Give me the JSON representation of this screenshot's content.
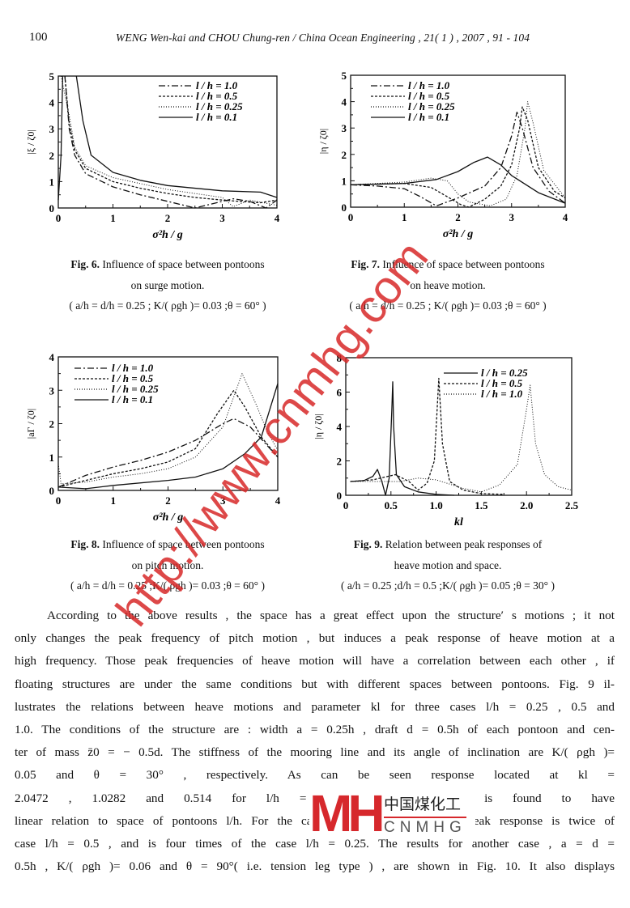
{
  "header": {
    "page_number": "100",
    "running_head": "WENG Wen-kai and CHOU Chung-ren / China Ocean Engineering , 21( 1 ) , 2007 , 91 - 104"
  },
  "captions": [
    {
      "label": "Fig. 6.",
      "lines": [
        "Influence of space between pontoons",
        "on surge motion.",
        "( a/h = d/h = 0.25 ; K/( ρgh )= 0.03 ;θ = 60° )"
      ]
    },
    {
      "label": "Fig. 7.",
      "lines": [
        "Influence of space between pontoons",
        "on heave motion.",
        "( a/h = d/h = 0.25 ; K/( ρgh )= 0.03 ;θ = 60° )"
      ]
    },
    {
      "label": "Fig. 8.",
      "lines": [
        "Influence of space between pontoons",
        "on pitch motion.",
        "( a/h = d/h = 0.25 ;K/( ρgh )= 0.03 ;θ = 60° )"
      ]
    },
    {
      "label": "Fig. 9.",
      "lines": [
        "Relation between peak responses of",
        "heave motion and space.",
        "( a/h = 0.25 ;d/h = 0.5 ;K/( ρgh )= 0.05 ;θ = 30° )"
      ]
    }
  ],
  "chart_data": [
    {
      "type": "line",
      "xlabel": "σ²h / g",
      "ylabel": "|ξ / ζ0|",
      "xlim": [
        0,
        4
      ],
      "ylim": [
        0,
        5
      ],
      "xticks": [
        "0",
        "1",
        "2",
        "3",
        "4"
      ],
      "yticks": [
        "0",
        "1",
        "2",
        "3",
        "4",
        "5"
      ],
      "legend": "top-right",
      "series": [
        {
          "name": "l / h = 1.0",
          "style": "dash-dot",
          "points": [
            [
              0.12,
              5
            ],
            [
              0.2,
              3
            ],
            [
              0.3,
              2
            ],
            [
              0.5,
              1.3
            ],
            [
              1,
              0.8
            ],
            [
              1.5,
              0.5
            ],
            [
              2,
              0.25
            ],
            [
              2.5,
              0
            ],
            [
              2.8,
              0.15
            ],
            [
              3.2,
              0.35
            ],
            [
              3.5,
              0.25
            ],
            [
              3.8,
              0
            ],
            [
              4,
              0.3
            ]
          ]
        },
        {
          "name": "l / h = 0.5",
          "style": "dashed",
          "points": [
            [
              0.12,
              5
            ],
            [
              0.2,
              3.2
            ],
            [
              0.3,
              2.2
            ],
            [
              0.5,
              1.5
            ],
            [
              1,
              1.0
            ],
            [
              1.5,
              0.75
            ],
            [
              2,
              0.55
            ],
            [
              2.5,
              0.4
            ],
            [
              3,
              0.3
            ],
            [
              3.3,
              0.25
            ],
            [
              3.7,
              0.2
            ],
            [
              4,
              0.3
            ]
          ]
        },
        {
          "name": "l / h = 0.25",
          "style": "dotted",
          "points": [
            [
              0.05,
              5
            ],
            [
              0.2,
              3.5
            ],
            [
              0.3,
              2.3
            ],
            [
              0.5,
              1.6
            ],
            [
              1,
              1.15
            ],
            [
              2,
              0.7
            ],
            [
              3,
              0.4
            ],
            [
              3.2,
              0.05
            ],
            [
              3.5,
              0.3
            ],
            [
              4,
              0.1
            ]
          ]
        },
        {
          "name": "l / h = 0.1",
          "style": "solid",
          "points": [
            [
              0,
              0.3
            ],
            [
              0.05,
              2
            ],
            [
              0.08,
              5
            ],
            null,
            [
              0.33,
              5
            ],
            [
              0.45,
              3.3
            ],
            [
              0.6,
              2
            ],
            [
              1,
              1.35
            ],
            [
              1.5,
              1.05
            ],
            [
              2,
              0.85
            ],
            [
              3,
              0.65
            ],
            [
              3.7,
              0.6
            ],
            [
              4,
              0.4
            ]
          ]
        }
      ]
    },
    {
      "type": "line",
      "xlabel": "σ²h / g",
      "ylabel": "|η / ζ0|",
      "xlim": [
        0,
        4
      ],
      "ylim": [
        0,
        5
      ],
      "xticks": [
        "0",
        "1",
        "2",
        "3",
        "4"
      ],
      "yticks": [
        "0",
        "1",
        "2",
        "3",
        "4",
        "5"
      ],
      "legend": "top-left",
      "series": [
        {
          "name": "l / h = 1.0",
          "style": "dash-dot",
          "points": [
            [
              0,
              0.85
            ],
            [
              0.5,
              0.8
            ],
            [
              1,
              0.7
            ],
            [
              1.3,
              0.4
            ],
            [
              1.6,
              0.05
            ],
            [
              2,
              0.35
            ],
            [
              2.5,
              0.8
            ],
            [
              2.8,
              1.5
            ],
            [
              3,
              2.7
            ],
            [
              3.1,
              3.6
            ],
            [
              3.2,
              3.0
            ],
            [
              3.4,
              1.5
            ],
            [
              3.7,
              0.6
            ],
            [
              4,
              0.15
            ]
          ]
        },
        {
          "name": "l / h = 0.5",
          "style": "dashed",
          "points": [
            [
              0,
              0.85
            ],
            [
              1,
              0.9
            ],
            [
              1.5,
              0.75
            ],
            [
              1.8,
              0.4
            ],
            [
              2.05,
              0.1
            ],
            [
              2.2,
              0
            ],
            [
              2.5,
              0.3
            ],
            [
              2.8,
              0.8
            ],
            [
              3,
              1.6
            ],
            [
              3.15,
              3.0
            ],
            [
              3.2,
              3.8
            ],
            [
              3.3,
              3.3
            ],
            [
              3.5,
              1.5
            ],
            [
              3.8,
              0.6
            ],
            [
              4,
              0.35
            ]
          ]
        },
        {
          "name": "l / h = 0.25",
          "style": "dotted",
          "points": [
            [
              0,
              0.85
            ],
            [
              1,
              0.95
            ],
            [
              1.5,
              1.1
            ],
            [
              1.8,
              1.0
            ],
            [
              2.0,
              0.5
            ],
            [
              2.2,
              0.2
            ],
            [
              2.6,
              0.05
            ],
            [
              2.9,
              0.3
            ],
            [
              3.1,
              1.2
            ],
            [
              3.25,
              3.0
            ],
            [
              3.3,
              4.0
            ],
            [
              3.4,
              3.2
            ],
            [
              3.6,
              1.4
            ],
            [
              4,
              0.35
            ]
          ]
        },
        {
          "name": "l / h = 0.1",
          "style": "solid",
          "points": [
            [
              0,
              0.85
            ],
            [
              1,
              0.9
            ],
            [
              1.6,
              1.05
            ],
            [
              2,
              1.35
            ],
            [
              2.3,
              1.7
            ],
            [
              2.55,
              1.9
            ],
            [
              2.8,
              1.6
            ],
            [
              3,
              1.2
            ],
            [
              3.5,
              0.55
            ],
            [
              4,
              0.15
            ]
          ]
        }
      ]
    },
    {
      "type": "line",
      "xlabel": "σ²h / g",
      "ylabel": "|aΓ / ζ0|",
      "xlim": [
        0,
        4
      ],
      "ylim": [
        0,
        4
      ],
      "xticks": [
        "0",
        "1",
        "2",
        "3",
        "4"
      ],
      "yticks": [
        "0",
        "1",
        "2",
        "3",
        "4"
      ],
      "legend": "top-left",
      "series": [
        {
          "name": "l / h = 1.0",
          "style": "dash-dot",
          "points": [
            [
              0,
              0.1
            ],
            [
              0.5,
              0.45
            ],
            [
              1,
              0.7
            ],
            [
              1.5,
              0.9
            ],
            [
              2,
              1.15
            ],
            [
              2.5,
              1.5
            ],
            [
              3,
              2.0
            ],
            [
              3.2,
              2.15
            ],
            [
              3.5,
              1.9
            ],
            [
              4,
              1.0
            ]
          ]
        },
        {
          "name": "l / h = 0.5",
          "style": "dashed",
          "points": [
            [
              0,
              0.1
            ],
            [
              0.5,
              0.3
            ],
            [
              1,
              0.5
            ],
            [
              1.5,
              0.65
            ],
            [
              2,
              0.85
            ],
            [
              2.5,
              1.25
            ],
            [
              2.9,
              2.3
            ],
            [
              3.2,
              3.0
            ],
            [
              3.4,
              2.5
            ],
            [
              3.7,
              1.6
            ],
            [
              4,
              1.0
            ]
          ]
        },
        {
          "name": "l / h = 0.25",
          "style": "dotted",
          "points": [
            [
              0,
              0.8
            ],
            [
              0.05,
              0.2
            ],
            [
              0.5,
              0.25
            ],
            [
              1,
              0.4
            ],
            [
              1.5,
              0.5
            ],
            [
              2,
              0.65
            ],
            [
              2.5,
              1.0
            ],
            [
              3,
              1.9
            ],
            [
              3.35,
              3.5
            ],
            [
              3.6,
              2.6
            ],
            [
              3.8,
              1.8
            ],
            [
              4,
              1.2
            ]
          ]
        },
        {
          "name": "l / h = 0.1",
          "style": "solid",
          "points": [
            [
              0,
              0.1
            ],
            [
              0.5,
              0.05
            ],
            [
              1,
              0.15
            ],
            [
              2,
              0.3
            ],
            [
              2.5,
              0.4
            ],
            [
              3,
              0.65
            ],
            [
              3.4,
              1.1
            ],
            [
              3.7,
              1.6
            ],
            [
              4,
              3.2
            ]
          ]
        }
      ]
    },
    {
      "type": "line",
      "xlabel": "kl",
      "ylabel": "|η / ζ0|",
      "xlim": [
        0,
        2.5
      ],
      "ylim": [
        0,
        8
      ],
      "xticks": [
        "0",
        "0.5",
        "1.0",
        "1.5",
        "2.0",
        "2.5"
      ],
      "yticks": [
        "0",
        "2",
        "4",
        "6",
        "8"
      ],
      "legend": "top-right",
      "series": [
        {
          "name": "l / h = 0.25",
          "style": "solid",
          "points": [
            [
              0.05,
              0.8
            ],
            [
              0.2,
              0.85
            ],
            [
              0.3,
              1.1
            ],
            [
              0.35,
              1.5
            ],
            [
              0.4,
              0.8
            ],
            [
              0.44,
              0
            ],
            [
              0.48,
              1
            ],
            [
              0.51,
              5
            ],
            [
              0.52,
              6.6
            ],
            [
              0.53,
              4
            ],
            [
              0.56,
              1.2
            ],
            [
              0.65,
              0.5
            ],
            [
              0.8,
              0.2
            ],
            [
              1.0,
              0.05
            ],
            [
              1.2,
              0
            ]
          ]
        },
        {
          "name": "l / h = 0.5",
          "style": "dashed",
          "points": [
            [
              0.05,
              0.8
            ],
            [
              0.3,
              0.9
            ],
            [
              0.55,
              1.2
            ],
            [
              0.7,
              0.8
            ],
            [
              0.8,
              0.3
            ],
            [
              0.9,
              0.7
            ],
            [
              0.98,
              2
            ],
            [
              1.03,
              6.8
            ],
            [
              1.07,
              3
            ],
            [
              1.15,
              0.8
            ],
            [
              1.3,
              0.3
            ],
            [
              1.5,
              0.1
            ],
            [
              1.75,
              0.05
            ]
          ]
        },
        {
          "name": "l / h = 1.0",
          "style": "dotted",
          "points": [
            [
              0.05,
              0.8
            ],
            [
              0.6,
              0.8
            ],
            [
              0.8,
              1.0
            ],
            [
              1.0,
              0.9
            ],
            [
              1.3,
              0.4
            ],
            [
              1.5,
              0.2
            ],
            [
              1.7,
              0.6
            ],
            [
              1.9,
              1.8
            ],
            [
              2.0,
              5
            ],
            [
              2.04,
              6.4
            ],
            [
              2.1,
              3
            ],
            [
              2.2,
              1.2
            ],
            [
              2.35,
              0.5
            ],
            [
              2.5,
              0.3
            ]
          ]
        }
      ]
    }
  ],
  "body": {
    "lines": [
      "According to the above results , the space has a great effect upon the structure′ s motions ; it not",
      "only changes the peak frequency of pitch motion , but induces a peak response of heave motion at a",
      "high frequency. Those peak frequencies of heave motion will have a correlation between each other , if",
      "floating structures are under the same conditions but with different spaces between pontoons. Fig. 9 il-",
      "lustrates the relations between heave motions and parameter kl for three cases l/h = 0.25 , 0.5 and",
      "1.0. The conditions of the structure are : width a = 0.25h , draft d = 0.5h of each pontoon and cen-",
      "ter of mass z̄0 = − 0.5d. The stiffness of the mooring line and its angle of inclination are K/( ρgh )=",
      "0.05 and θ = 30° , respectively. As can be seen                                                  response located at kl =",
      "2.0472 , 1.0282 and 0.514 for l/h = 1.0 , 0.5                                                  response is found to have",
      "linear relation to space of pontoons l/h. For the case l/h = 1.0 , the kl of peak response is twice of",
      "case l/h = 0.5 , and is four times of the case l/h = 0.25. The results for another case , a = d =",
      "0.5h , K/( ρgh )= 0.06 and θ = 90°( i.e. tension leg type ) , are shown in Fig. 10. It also displays"
    ]
  },
  "watermark": {
    "text": "http://www.cnmhg.com",
    "color": "#d6282c"
  },
  "logo": {
    "mark": "MH",
    "chinese": "中国煤化工",
    "english": "CNMHG"
  }
}
